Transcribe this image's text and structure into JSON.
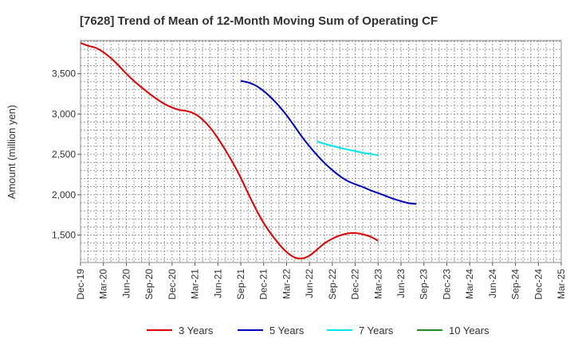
{
  "chart_data": {
    "type": "line",
    "title": "[7628]  Trend of Mean of 12-Month Moving Sum of Operating CF",
    "xlabel": "",
    "ylabel": "Amount (million yen)",
    "ylim": [
      1160,
      3910
    ],
    "y_ticks": [
      1500,
      2000,
      2500,
      3000,
      3500
    ],
    "y_tick_labels": [
      "1,500",
      "2,000",
      "2,500",
      "3,000",
      "3,500"
    ],
    "x_tick_labels": [
      "Dec-19",
      "Mar-20",
      "Jun-20",
      "Sep-20",
      "Dec-20",
      "Mar-21",
      "Jun-21",
      "Sep-21",
      "Dec-21",
      "Mar-22",
      "Jun-22",
      "Sep-22",
      "Dec-22",
      "Mar-23",
      "Jun-23",
      "Sep-23",
      "Dec-23",
      "Mar-24",
      "Jun-24",
      "Sep-24",
      "Dec-24",
      "Mar-25"
    ],
    "grid": true,
    "legend_position": "bottom",
    "series": [
      {
        "name": "3 Years",
        "color": "#dd0000",
        "values": [
          3880,
          3845,
          3820,
          3765,
          3690,
          3600,
          3500,
          3410,
          3330,
          3255,
          3185,
          3125,
          3080,
          3050,
          3035,
          3000,
          2930,
          2830,
          2700,
          2550,
          2390,
          2210,
          2010,
          1820,
          1650,
          1510,
          1390,
          1290,
          1225,
          1210,
          1245,
          1320,
          1400,
          1455,
          1495,
          1520,
          1525,
          1510,
          1480,
          1430
        ]
      },
      {
        "name": "5 Years",
        "color": "#0000bb",
        "start_index": 21,
        "values": [
          3410,
          3390,
          3350,
          3285,
          3200,
          3100,
          2985,
          2855,
          2720,
          2600,
          2490,
          2390,
          2305,
          2230,
          2170,
          2130,
          2095,
          2055,
          2020,
          1985,
          1950,
          1920,
          1895,
          1885
        ]
      },
      {
        "name": "7 Years",
        "color": "#00e5ee",
        "start_index": 31,
        "values": [
          2660,
          2630,
          2605,
          2580,
          2560,
          2540,
          2520,
          2505,
          2490
        ]
      },
      {
        "name": "10 Years",
        "color": "#228b22",
        "values": []
      }
    ]
  }
}
